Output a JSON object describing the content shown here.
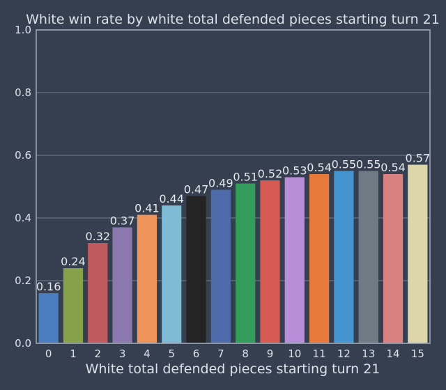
{
  "chart_data": {
    "type": "bar",
    "title": "White win rate by white total defended pieces starting turn 21",
    "xlabel": "White total defended pieces starting turn 21",
    "ylabel": "",
    "ylim": [
      0,
      1.0
    ],
    "yticks": [
      "0.0",
      "0.2",
      "0.4",
      "0.6",
      "0.8",
      "1.0"
    ],
    "grid": true,
    "categories": [
      "0",
      "1",
      "2",
      "3",
      "4",
      "5",
      "6",
      "7",
      "8",
      "9",
      "10",
      "11",
      "12",
      "13",
      "14",
      "15"
    ],
    "values": [
      0.16,
      0.24,
      0.32,
      0.37,
      0.41,
      0.44,
      0.47,
      0.49,
      0.51,
      0.52,
      0.53,
      0.54,
      0.55,
      0.55,
      0.54,
      0.57
    ],
    "labels": [
      "0.16",
      "0.24",
      "0.32",
      "0.37",
      "0.41",
      "0.44",
      "0.47",
      "0.49",
      "0.51",
      "0.52",
      "0.53",
      "0.54",
      "0.55",
      "0.55",
      "0.54",
      "0.57"
    ],
    "colors": [
      "#4a7cc0",
      "#85a24b",
      "#c05a5e",
      "#8b78ae",
      "#ef955c",
      "#7fbbd5",
      "#242424",
      "#4d6aaa",
      "#349c5b",
      "#d65a52",
      "#b98ed9",
      "#e77a3a",
      "#4494d0",
      "#6f7a85",
      "#d98181",
      "#dcd6aa"
    ]
  }
}
